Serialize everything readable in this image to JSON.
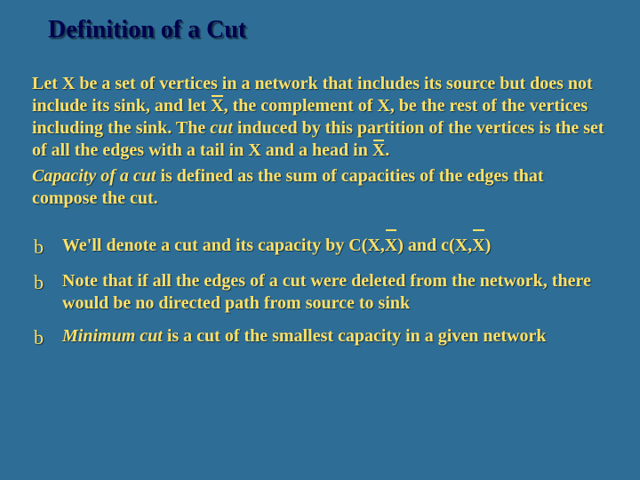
{
  "colors": {
    "background": "#2e6e96",
    "title": "#00004d",
    "body_text": "#ffe067",
    "shadow": "rgba(0,0,0,0.55)"
  },
  "typography": {
    "title_fontsize": 28,
    "body_fontsize": 20,
    "font_family": "Georgia, Times New Roman, serif",
    "bullet_marker_family": "Monotype Corsiva, cursive"
  },
  "title": "Definition of a Cut",
  "paragraph": {
    "p1a": "Let X be a set of vertices in a network that includes its source but does not include its sink, and let ",
    "xbar1": "X",
    "p1b": ", the complement of X, be the rest of the vertices including the sink.  The ",
    "cut_italic": "cut",
    "p1c": " induced by this partition of the vertices is the set of all the edges with a tail in X and a head in ",
    "xbar2": "X",
    "p1d": ".",
    "cap_italic": "Capacity of a cut",
    "p2": " is defined as the sum of capacities of the edges that compose the cut."
  },
  "bullets": {
    "marker": "b",
    "b1a": "We'll  denote a cut and its capacity by C(X,",
    "b1x1": "X",
    "b1b": ") and c(X,",
    "b1x2": "X",
    "b1c": ")",
    "b2": "Note that if all the edges of a cut were deleted from the network, there would be no directed path from source to sink",
    "b3a": "Minimum cut",
    "b3b": "  is a cut of the smallest capacity in a given network"
  }
}
